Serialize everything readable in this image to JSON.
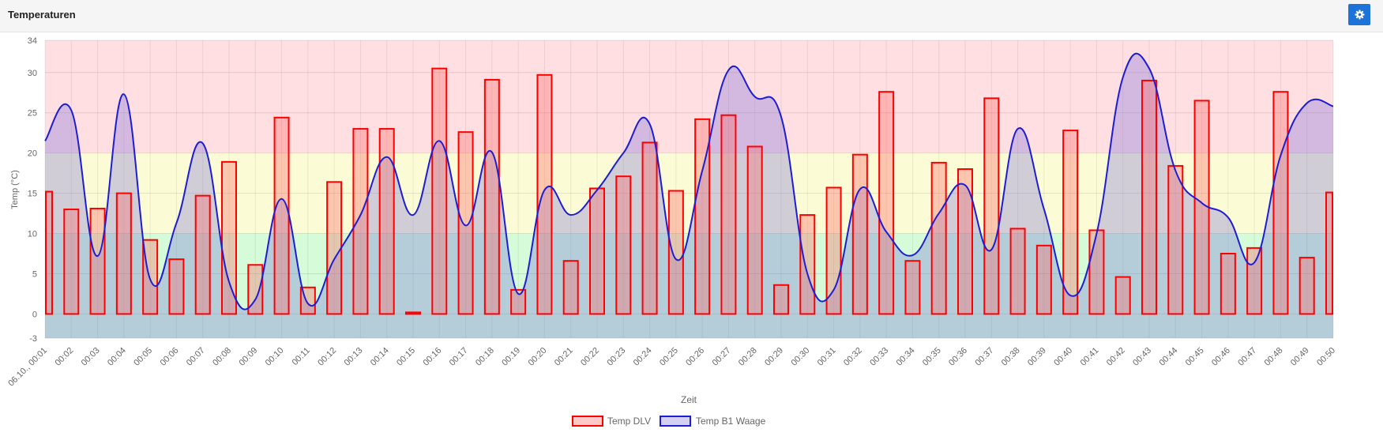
{
  "panel": {
    "title": "Temperaturen"
  },
  "settings_icon": "gear-icon",
  "chart_data": {
    "type": "bar",
    "title": "",
    "xlabel": "Zeit",
    "ylabel": "Temp (°C)",
    "ylim": [
      -3,
      34
    ],
    "yticks": [
      -3,
      0,
      5,
      10,
      15,
      20,
      25,
      30,
      34
    ],
    "grid": true,
    "legend_position": "bottom",
    "bands": [
      {
        "from": 20,
        "to": 34,
        "color": "#ffdfe1"
      },
      {
        "from": 10,
        "to": 20,
        "color": "#fbfbd6"
      },
      {
        "from": -3,
        "to": 10,
        "color": "#d5fbd8"
      }
    ],
    "categories": [
      "06.10., 00:01",
      "00:02",
      "00:03",
      "00:04",
      "00:05",
      "00:06",
      "00:07",
      "00:08",
      "00:09",
      "00:10",
      "00:11",
      "00:12",
      "00:13",
      "00:14",
      "00:15",
      "00:16",
      "00:17",
      "00:18",
      "00:19",
      "00:20",
      "00:21",
      "00:22",
      "00:23",
      "00:24",
      "00:25",
      "00:26",
      "00:27",
      "00:28",
      "00:29",
      "00:30",
      "00:31",
      "00:32",
      "00:33",
      "00:34",
      "00:35",
      "00:36",
      "00:37",
      "00:38",
      "00:39",
      "00:40",
      "00:41",
      "00:42",
      "00:43",
      "00:44",
      "00:45",
      "00:46",
      "00:47",
      "00:48",
      "00:49",
      "00:50"
    ],
    "series": [
      {
        "name": "Temp DLV",
        "type": "bar",
        "color": "#ff0000",
        "fill": "rgba(255,99,99,0.35)",
        "values": [
          15.2,
          13,
          13.1,
          15,
          9.2,
          6.8,
          14.7,
          18.9,
          6.1,
          24.4,
          3.3,
          16.4,
          23,
          23,
          0.2,
          30.5,
          22.6,
          29.1,
          3,
          29.7,
          6.6,
          15.6,
          17.1,
          21.3,
          15.3,
          24.2,
          24.7,
          20.8,
          3.6,
          12.3,
          15.7,
          19.8,
          27.6,
          6.6,
          18.8,
          18,
          26.8,
          10.6,
          8.5,
          22.8,
          10.4,
          4.6,
          29,
          18.4,
          26.5,
          7.5,
          8.2,
          27.6,
          7,
          15.1
        ]
      },
      {
        "name": "Temp B1 Waage",
        "type": "line",
        "color": "#1d1dd4",
        "fill": "rgba(110,100,220,0.3)",
        "values": [
          21.5,
          25.3,
          7.2,
          27.3,
          4.3,
          11.3,
          21.2,
          4,
          1.8,
          14.3,
          1.3,
          6.8,
          12.3,
          19.5,
          12.3,
          21.5,
          11,
          20.1,
          2.5,
          15.4,
          12.3,
          15.4,
          20,
          23.6,
          6.8,
          17.8,
          30.3,
          27,
          24.5,
          5,
          3,
          15.5,
          10.2,
          7.3,
          12.5,
          16,
          8,
          23,
          13,
          2.3,
          10,
          29.4,
          30.5,
          17.8,
          13.8,
          12,
          6.4,
          19.7,
          26.2,
          25.8
        ]
      }
    ]
  }
}
